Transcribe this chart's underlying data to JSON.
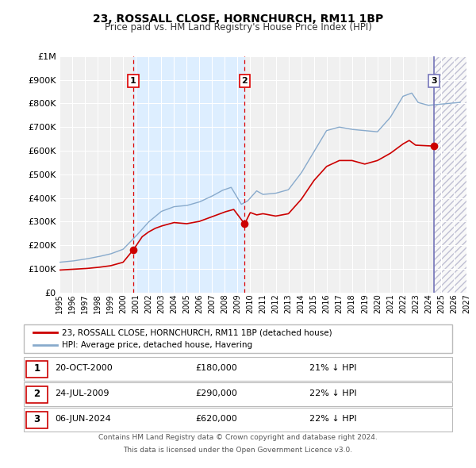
{
  "title": "23, ROSSALL CLOSE, HORNCHURCH, RM11 1BP",
  "subtitle": "Price paid vs. HM Land Registry's House Price Index (HPI)",
  "x_start": 1995.0,
  "x_end": 2027.0,
  "y_min": 0,
  "y_max": 1000000,
  "y_ticks": [
    0,
    100000,
    200000,
    300000,
    400000,
    500000,
    600000,
    700000,
    800000,
    900000,
    1000000
  ],
  "y_tick_labels": [
    "£0",
    "£100K",
    "£200K",
    "£300K",
    "£400K",
    "£500K",
    "£600K",
    "£700K",
    "£800K",
    "£900K",
    "£1M"
  ],
  "x_ticks": [
    1995,
    1996,
    1997,
    1998,
    1999,
    2000,
    2001,
    2002,
    2003,
    2004,
    2005,
    2006,
    2007,
    2008,
    2009,
    2010,
    2011,
    2012,
    2013,
    2014,
    2015,
    2016,
    2017,
    2018,
    2019,
    2020,
    2021,
    2022,
    2023,
    2024,
    2025,
    2026,
    2027
  ],
  "transaction_dates": [
    2000.8,
    2009.56,
    2024.44
  ],
  "transaction_prices": [
    180000,
    290000,
    620000
  ],
  "transaction_labels": [
    "1",
    "2",
    "3"
  ],
  "vline_color": "#dd0000",
  "vline3_color": "#7777bb",
  "sale_marker_color": "#cc0000",
  "hpi_line_color": "#88aacc",
  "price_line_color": "#cc0000",
  "bg_shaded_color": "#ddeeff",
  "legend_entries": [
    "23, ROSSALL CLOSE, HORNCHURCH, RM11 1BP (detached house)",
    "HPI: Average price, detached house, Havering"
  ],
  "table_rows": [
    [
      "1",
      "20-OCT-2000",
      "£180,000",
      "21% ↓ HPI"
    ],
    [
      "2",
      "24-JUL-2009",
      "£290,000",
      "22% ↓ HPI"
    ],
    [
      "3",
      "06-JUN-2024",
      "£620,000",
      "22% ↓ HPI"
    ]
  ],
  "footer_line1": "Contains HM Land Registry data © Crown copyright and database right 2024.",
  "footer_line2": "This data is licensed under the Open Government Licence v3.0.",
  "background_color": "#ffffff",
  "plot_bg_color": "#f0f0f0"
}
